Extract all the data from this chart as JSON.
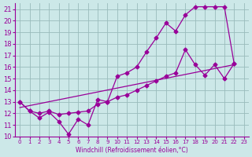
{
  "xlabel": "Windchill (Refroidissement éolien,°C)",
  "bg_color": "#cce8e8",
  "line_color": "#990099",
  "grid_color": "#99bbbb",
  "xlim": [
    -0.5,
    23.5
  ],
  "ylim": [
    10,
    21.5
  ],
  "yticks": [
    10,
    11,
    12,
    13,
    14,
    15,
    16,
    17,
    18,
    19,
    20,
    21
  ],
  "xticks": [
    0,
    1,
    2,
    3,
    4,
    5,
    6,
    7,
    8,
    9,
    10,
    11,
    12,
    13,
    14,
    15,
    16,
    17,
    18,
    19,
    20,
    21,
    22,
    23
  ],
  "series1_x": [
    0,
    1,
    2,
    3,
    4,
    5,
    6,
    7,
    8,
    9,
    10,
    11,
    12,
    13,
    14,
    15,
    16,
    17,
    18,
    19,
    20,
    21,
    22
  ],
  "series1_y": [
    13.0,
    12.2,
    11.6,
    12.1,
    11.3,
    10.2,
    11.5,
    11.0,
    13.2,
    13.0,
    15.2,
    15.5,
    16.0,
    17.3,
    18.5,
    19.8,
    19.1,
    20.5,
    21.2,
    21.2,
    21.2,
    21.2,
    16.3
  ],
  "series2_x": [
    0,
    1,
    2,
    3,
    4,
    5,
    6,
    7,
    8,
    9,
    10,
    11,
    12,
    13,
    14,
    15,
    16,
    17,
    18,
    19,
    20,
    21,
    22
  ],
  "series2_y": [
    13.0,
    12.2,
    12.0,
    12.2,
    11.9,
    12.0,
    12.1,
    12.2,
    12.8,
    13.0,
    13.4,
    13.6,
    14.0,
    14.4,
    14.8,
    15.2,
    15.5,
    17.5,
    16.2,
    15.3,
    16.2,
    15.0,
    16.3
  ],
  "series3_x": [
    0,
    22
  ],
  "series3_y": [
    12.5,
    16.2
  ]
}
